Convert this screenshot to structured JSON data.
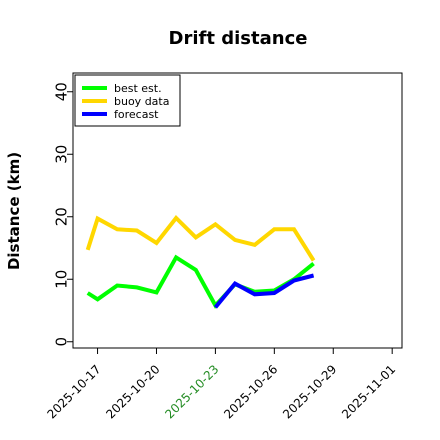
{
  "chart_data": {
    "type": "line",
    "title": "Drift distance",
    "xlabel": "",
    "ylabel": "Distance (km)",
    "ylim": [
      -1,
      43
    ],
    "xlim": [
      "2025-10-15T18:00",
      "2025-11-01T12:00"
    ],
    "yticks": [
      0,
      10,
      20,
      30,
      40
    ],
    "xticks": [
      {
        "label": "2025-10-17",
        "date": "2025-10-17",
        "color": "#000000"
      },
      {
        "label": "2025-10-20",
        "date": "2025-10-20",
        "color": "#000000"
      },
      {
        "label": "2025-10-23",
        "date": "2025-10-23",
        "color": "#228B22"
      },
      {
        "label": "2025-10-26",
        "date": "2025-10-26",
        "color": "#000000"
      },
      {
        "label": "2025-10-29",
        "date": "2025-10-29",
        "color": "#000000"
      },
      {
        "label": "2025-11-01",
        "date": "2025-11-01",
        "color": "#000000"
      }
    ],
    "grid": false,
    "legend_position": "top-left",
    "series": [
      {
        "name": "best est.",
        "color": "#00ff00",
        "points": [
          [
            "2025-10-16T12:00",
            7.8
          ],
          [
            "2025-10-17T00:00",
            6.8
          ],
          [
            "2025-10-18T00:00",
            9.0
          ],
          [
            "2025-10-19T00:00",
            8.7
          ],
          [
            "2025-10-20T00:00",
            7.9
          ],
          [
            "2025-10-21T00:00",
            13.5
          ],
          [
            "2025-10-22T00:00",
            11.5
          ],
          [
            "2025-10-23T00:00",
            5.8
          ],
          [
            "2025-10-24T00:00",
            9.2
          ],
          [
            "2025-10-25T00:00",
            8.0
          ],
          [
            "2025-10-26T00:00",
            8.2
          ],
          [
            "2025-10-27T00:00",
            10.0
          ],
          [
            "2025-10-28T00:00",
            12.5
          ]
        ]
      },
      {
        "name": "buoy data",
        "color": "#ffd700",
        "points": [
          [
            "2025-10-16T12:00",
            14.7
          ],
          [
            "2025-10-17T00:00",
            19.7
          ],
          [
            "2025-10-18T00:00",
            18.0
          ],
          [
            "2025-10-19T00:00",
            17.8
          ],
          [
            "2025-10-20T00:00",
            15.8
          ],
          [
            "2025-10-21T00:00",
            19.8
          ],
          [
            "2025-10-22T00:00",
            16.7
          ],
          [
            "2025-10-23T00:00",
            18.8
          ],
          [
            "2025-10-24T00:00",
            16.3
          ],
          [
            "2025-10-25T00:00",
            15.5
          ],
          [
            "2025-10-26T00:00",
            18.0
          ],
          [
            "2025-10-27T00:00",
            18.0
          ],
          [
            "2025-10-28T00:00",
            13.0
          ]
        ]
      },
      {
        "name": "forecast",
        "color": "#0000ff",
        "points": [
          [
            "2025-10-23T00:00",
            5.5
          ],
          [
            "2025-10-24T00:00",
            9.3
          ],
          [
            "2025-10-25T00:00",
            7.6
          ],
          [
            "2025-10-26T00:00",
            7.8
          ],
          [
            "2025-10-27T00:00",
            9.8
          ],
          [
            "2025-10-28T00:00",
            10.6
          ]
        ]
      }
    ]
  }
}
